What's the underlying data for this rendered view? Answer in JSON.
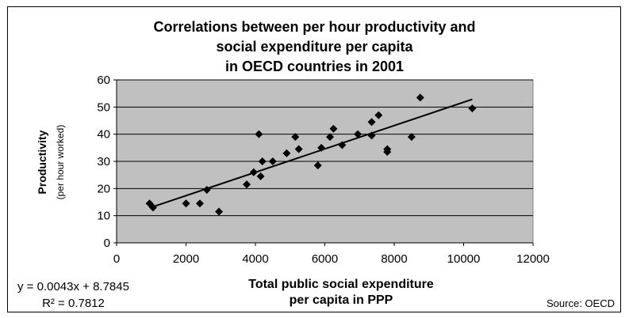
{
  "chart_data": {
    "type": "scatter",
    "title": [
      "Correlations between per hour productivity and",
      "social expenditure per capita",
      "in OECD countries in 2001"
    ],
    "xlabel": [
      "Total public social expenditure",
      "per capita in PPP"
    ],
    "ylabel": [
      "Productivity",
      "(per hour worked)"
    ],
    "xlim": [
      0,
      12000
    ],
    "ylim": [
      0,
      60
    ],
    "xticks": [
      "0",
      "2000",
      "4000",
      "6000",
      "8000",
      "10000",
      "12000"
    ],
    "yticks": [
      "0",
      "10",
      "20",
      "30",
      "40",
      "50",
      "60"
    ],
    "grid": "horizontal",
    "points": [
      [
        950,
        14.5
      ],
      [
        1050,
        13
      ],
      [
        2000,
        14.5
      ],
      [
        2400,
        14.5
      ],
      [
        2600,
        19.5
      ],
      [
        2950,
        11.5
      ],
      [
        3750,
        21.5
      ],
      [
        3950,
        26
      ],
      [
        4100,
        40
      ],
      [
        4150,
        24.5
      ],
      [
        4200,
        30
      ],
      [
        4500,
        30
      ],
      [
        4900,
        33
      ],
      [
        5150,
        39
      ],
      [
        5250,
        34.5
      ],
      [
        5800,
        28.5
      ],
      [
        5900,
        35
      ],
      [
        6150,
        39
      ],
      [
        6250,
        42
      ],
      [
        6500,
        36
      ],
      [
        6950,
        40
      ],
      [
        7350,
        39.5
      ],
      [
        7350,
        44.5
      ],
      [
        7550,
        47
      ],
      [
        7800,
        33.5
      ],
      [
        7800,
        34.5
      ],
      [
        8500,
        39
      ],
      [
        8750,
        53.5
      ],
      [
        10250,
        49.5
      ]
    ],
    "trendline": {
      "slope": 0.0043,
      "intercept": 8.7845,
      "x_range": [
        1000,
        10250
      ]
    },
    "equation": "y = 0.0043x + 8.7845",
    "r_squared": "R² = 0.7812",
    "source": "Source: OECD"
  }
}
